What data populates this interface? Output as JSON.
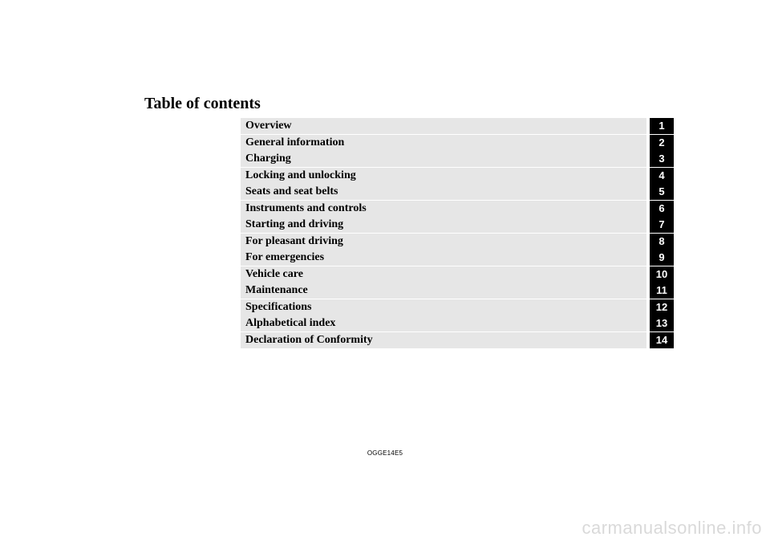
{
  "heading": "Table of contents",
  "toc": {
    "label_bg_alt": "#e6e6e6",
    "label_bg_plain": "#ffffff",
    "num_bg": "#000000",
    "num_fg": "#ffffff",
    "rows": [
      {
        "label": "Overview",
        "num": "1"
      },
      {
        "label": "General information",
        "num": "2"
      },
      {
        "label": "Charging",
        "num": "3"
      },
      {
        "label": "Locking and unlocking",
        "num": "4"
      },
      {
        "label": "Seats and seat belts",
        "num": "5"
      },
      {
        "label": "Instruments and controls",
        "num": "6"
      },
      {
        "label": "Starting and driving",
        "num": "7"
      },
      {
        "label": "For pleasant driving",
        "num": "8"
      },
      {
        "label": "For emergencies",
        "num": "9"
      },
      {
        "label": "Vehicle care",
        "num": "10"
      },
      {
        "label": "Maintenance",
        "num": "11"
      },
      {
        "label": "Specifications",
        "num": "12"
      },
      {
        "label": "Alphabetical index",
        "num": "13"
      },
      {
        "label": "Declaration of Conformity",
        "num": "14"
      }
    ]
  },
  "doc_code": "OGGE14E5",
  "watermark": "carmanualsonline.info"
}
